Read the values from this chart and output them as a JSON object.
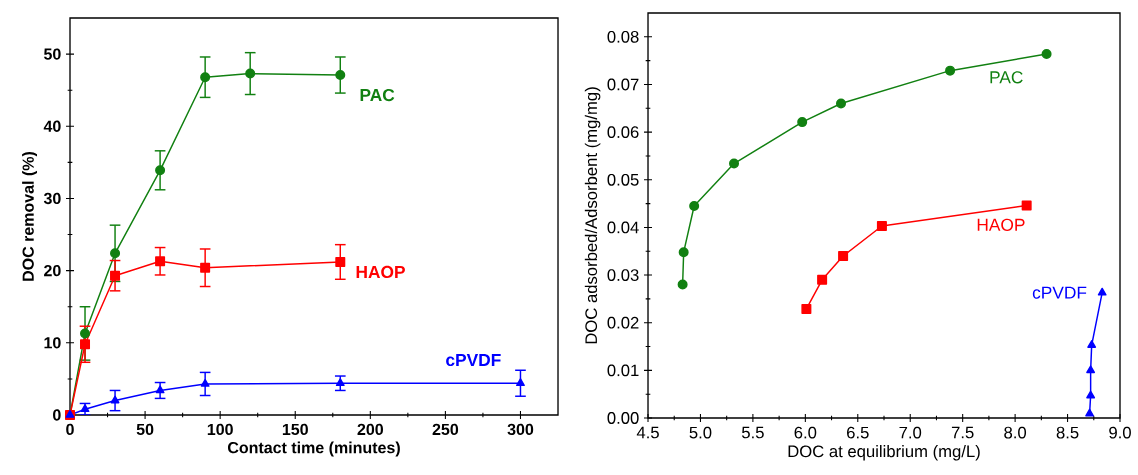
{
  "chart_data": [
    {
      "type": "line",
      "xlabel": "Contact time (minutes)",
      "ylabel": "DOC removal (%)",
      "xlim": [
        0,
        325
      ],
      "ylim": [
        0,
        55
      ],
      "xticks": [
        0,
        50,
        100,
        150,
        200,
        250,
        300
      ],
      "yticks": [
        0,
        10,
        20,
        30,
        40,
        50
      ],
      "grid": false,
      "legend": false,
      "line_style": "solid",
      "series": [
        {
          "name": "PAC",
          "color": "#118011",
          "marker": "circle",
          "x": [
            0,
            10,
            30,
            60,
            90,
            120,
            180
          ],
          "values": [
            0,
            11.3,
            22.4,
            33.9,
            46.8,
            47.3,
            47.1
          ],
          "errors": [
            null,
            3.7,
            3.9,
            2.7,
            2.8,
            2.9,
            2.5
          ]
        },
        {
          "name": "HAOP",
          "color": "#ff0000",
          "marker": "square",
          "x": [
            0,
            10,
            30,
            60,
            90,
            180
          ],
          "values": [
            0,
            9.8,
            19.3,
            21.3,
            20.4,
            21.2
          ],
          "errors": [
            null,
            2.5,
            2.1,
            1.9,
            2.6,
            2.4
          ]
        },
        {
          "name": "cPVDF",
          "color": "#0000ff",
          "marker": "triangle",
          "x": [
            0,
            10,
            30,
            60,
            90,
            180,
            300
          ],
          "values": [
            0,
            0.8,
            2.0,
            3.4,
            4.3,
            4.4,
            4.4
          ],
          "errors": [
            null,
            0.8,
            1.4,
            1.1,
            1.6,
            1.0,
            1.8
          ]
        }
      ]
    },
    {
      "type": "line",
      "xlabel": "DOC at equilibrium (mg/L)",
      "ylabel": "DOC adsorbed/Adsorbent (mg/mg)",
      "xlim": [
        4.5,
        9.0
      ],
      "ylim": [
        0,
        0.085
      ],
      "xticks": [
        {
          "value": 4.5,
          "label": "4.5"
        },
        {
          "value": 5,
          "label": "5.0"
        },
        {
          "value": 5.5,
          "label": "5.5"
        },
        {
          "value": 6,
          "label": "6.0"
        },
        {
          "value": 6.5,
          "label": "6.5"
        },
        {
          "value": 7,
          "label": "7.0"
        },
        {
          "value": 7.5,
          "label": "7.5"
        },
        {
          "value": 8,
          "label": "8.0"
        },
        {
          "value": 8.5,
          "label": "8.5"
        },
        {
          "value": 9,
          "label": "9.0"
        }
      ],
      "yticks": [
        {
          "value": 0,
          "label": "0.00"
        },
        {
          "value": 0.01,
          "label": "0.01"
        },
        {
          "value": 0.02,
          "label": "0.02"
        },
        {
          "value": 0.03,
          "label": "0.03"
        },
        {
          "value": 0.04,
          "label": "0.04"
        },
        {
          "value": 0.05,
          "label": "0.05"
        },
        {
          "value": 0.06,
          "label": "0.06"
        },
        {
          "value": 0.07,
          "label": "0.07"
        },
        {
          "value": 0.08,
          "label": "0.08"
        }
      ],
      "grid": false,
      "legend": false,
      "line_style": "solid",
      "series": [
        {
          "name": "PAC",
          "color": "#118011",
          "marker": "circle",
          "x": [
            4.83,
            4.84,
            4.94,
            5.32,
            5.97,
            6.34,
            7.38,
            8.3
          ],
          "values": [
            0.028,
            0.0348,
            0.0445,
            0.0534,
            0.0621,
            0.066,
            0.0729,
            0.0764
          ]
        },
        {
          "name": "HAOP",
          "color": "#ff0000",
          "marker": "square",
          "x": [
            6.01,
            6.16,
            6.36,
            6.73,
            8.11
          ],
          "values": [
            0.0229,
            0.029,
            0.034,
            0.0403,
            0.0446
          ]
        },
        {
          "name": "cPVDF",
          "color": "#0000ff",
          "marker": "triangle",
          "x": [
            8.71,
            8.72,
            8.72,
            8.73,
            8.83
          ],
          "values": [
            0.0009,
            0.0047,
            0.01,
            0.0153,
            0.0263
          ]
        }
      ]
    }
  ]
}
